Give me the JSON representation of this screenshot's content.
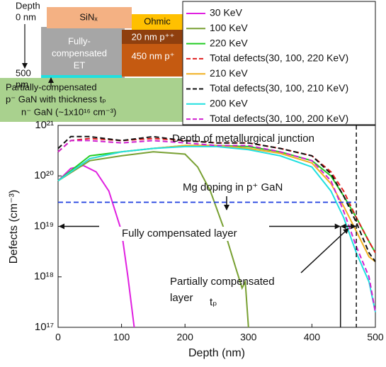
{
  "chart_data": {
    "type": "line",
    "xlabel": "Depth (nm)",
    "ylabel": "Defects (cm⁻³)",
    "xlim": [
      0,
      500
    ],
    "ylim": [
      1e+17,
      1e+21
    ],
    "ylog": true,
    "grid": false,
    "xticks": [
      0,
      100,
      200,
      300,
      400,
      500
    ],
    "yticks": [
      {
        "value": 1e+17,
        "label": "10¹⁷"
      },
      {
        "value": 1e+18,
        "label": "10¹⁸"
      },
      {
        "value": 1e+19,
        "label": "10¹⁹"
      },
      {
        "value": 1e+20,
        "label": "10²⁰"
      },
      {
        "value": 1e+21,
        "label": "10²¹"
      }
    ],
    "series": [
      {
        "name": "30 KeV",
        "color": "#e020e0",
        "dash": false,
        "x": [
          0,
          20,
          40,
          60,
          80,
          100,
          110,
          120
        ],
        "values": [
          8e+19,
          1.4e+20,
          1.6e+20,
          1.2e+20,
          5e+19,
          8e+18,
          1e+18,
          1e+17
        ]
      },
      {
        "name": "100 KeV",
        "color": "#78a032",
        "dash": false,
        "x": [
          0,
          50,
          100,
          150,
          200,
          220,
          240,
          260,
          280,
          290,
          295,
          300
        ],
        "values": [
          8e+19,
          2e+20,
          2.5e+20,
          3e+20,
          2.7e+20,
          1.5e+20,
          5e+19,
          1e+19,
          1.5e+18,
          6e+17,
          8e+17,
          1e+17
        ]
      },
      {
        "name": "220 KeV",
        "color": "#22cc22",
        "dash": false,
        "x": [
          0,
          50,
          100,
          150,
          200,
          250,
          300,
          350,
          400,
          430,
          450,
          470,
          490,
          500
        ],
        "values": [
          8e+19,
          2.5e+20,
          3e+20,
          3.5e+20,
          4e+20,
          4e+20,
          3.8e+20,
          3e+20,
          2e+20,
          1e+20,
          4e+19,
          1.5e+19,
          5e+18,
          3e+18
        ]
      },
      {
        "name": "Total defects(30, 100, 220 KeV)",
        "color": "#e02020",
        "dash": true,
        "x": [
          0,
          20,
          50,
          100,
          150,
          200,
          250,
          300,
          350,
          400,
          430,
          450,
          470,
          490,
          500
        ],
        "values": [
          3e+20,
          5e+20,
          5.5e+20,
          5e+20,
          5.5e+20,
          5e+20,
          4.5e+20,
          4.5e+20,
          3.5e+20,
          2.5e+20,
          1.2e+20,
          5e+19,
          1.5e+19,
          5e+18,
          3e+18
        ]
      },
      {
        "name": "210 KeV",
        "color": "#f0b020",
        "dash": false,
        "x": [
          0,
          50,
          100,
          150,
          200,
          250,
          300,
          350,
          400,
          430,
          450,
          470,
          490,
          500
        ],
        "values": [
          8e+19,
          2.2e+20,
          3e+20,
          3.5e+20,
          4e+20,
          4e+20,
          3.5e+20,
          2.8e+20,
          1.8e+20,
          7e+19,
          2.5e+19,
          8e+18,
          2.5e+18,
          2e+18
        ]
      },
      {
        "name": "Total defects(30, 100, 210 KeV)",
        "color": "#111111",
        "dash": true,
        "x": [
          0,
          20,
          50,
          100,
          150,
          200,
          250,
          300,
          350,
          400,
          430,
          450,
          470,
          490,
          500
        ],
        "values": [
          3.5e+20,
          6e+20,
          6e+20,
          5e+20,
          6e+20,
          5e+20,
          4.5e+20,
          4.5e+20,
          3.5e+20,
          2.5e+20,
          1.1e+20,
          4e+19,
          1.2e+19,
          3e+18,
          2e+18
        ]
      },
      {
        "name": "200 KeV",
        "color": "#20e0e0",
        "dash": false,
        "x": [
          0,
          50,
          100,
          150,
          200,
          250,
          300,
          350,
          400,
          430,
          450,
          470,
          490,
          500
        ],
        "values": [
          8e+19,
          2.2e+20,
          3e+20,
          3.5e+20,
          3.8e+20,
          3.8e+20,
          3.3e+20,
          2.5e+20,
          1.5e+20,
          5e+19,
          1.5e+19,
          3e+18,
          8e+17,
          2e+17
        ]
      },
      {
        "name": "Total defects(30, 100, 200 KeV)",
        "color": "#d020d0",
        "dash": true,
        "x": [
          0,
          20,
          50,
          100,
          150,
          200,
          250,
          300,
          350,
          400,
          430,
          450,
          470,
          490,
          500
        ],
        "values": [
          3e+20,
          5e+20,
          5e+20,
          4.5e+20,
          5e+20,
          4.5e+20,
          4e+20,
          4e+20,
          3e+20,
          2e+20,
          8e+19,
          2e+19,
          4e+18,
          1e+18,
          2e+17
        ]
      }
    ],
    "hlines": [
      {
        "value": 3e+19,
        "color": "#2040e0"
      }
    ],
    "vlines": [
      {
        "value": 470,
        "dash": true
      },
      {
        "value": 445,
        "dash": false
      }
    ],
    "annotations": [
      "Depth of metallurgical junction",
      "Mg doping in p⁺ GaN",
      "Fully compensated layer",
      "Partially compensated",
      "layer",
      "tₚ"
    ],
    "inset": {
      "depth": "Depth",
      "top": "0 nm",
      "bottom_value": "500",
      "bottom_unit": "nm",
      "sinx": "SiNₓ",
      "ohmic": "Ohmic",
      "fc1": "Fully-",
      "fc2": "compensated",
      "fc3": "ET",
      "ppp": "20 nm p⁺⁺",
      "pp": "450 nm p⁺",
      "pc1": "Partially-compensated",
      "pc2": "p⁻ GaN with thickness tₚ",
      "ngan": "n⁻ GaN (~1x10¹⁶ cm⁻³)"
    }
  }
}
